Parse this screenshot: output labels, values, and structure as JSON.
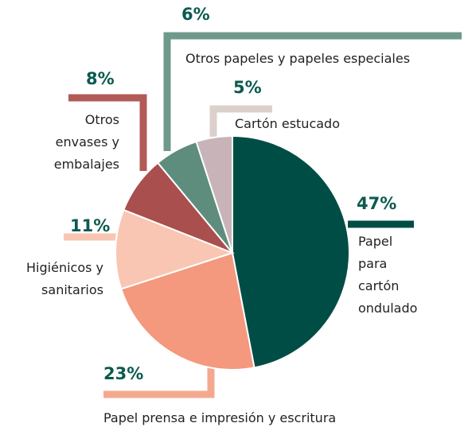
{
  "chart_data": {
    "type": "pie",
    "categories": [
      "Papel para cartón ondulado",
      "Papel prensa e impresión y escritura",
      "Higiénicos y sanitarios",
      "Otros envases y embalajes",
      "Otros papeles y papeles especiales",
      "Cartón estucado"
    ],
    "values": [
      47,
      23,
      11,
      8,
      6,
      5
    ],
    "value_labels": [
      "47%",
      "23%",
      "11%",
      "8%",
      "6%",
      "5%"
    ],
    "colors": [
      "#004d45",
      "#f4987e",
      "#f9c6b4",
      "#a94f4d",
      "#5e8d7d",
      "#c8b4b8"
    ]
  }
}
